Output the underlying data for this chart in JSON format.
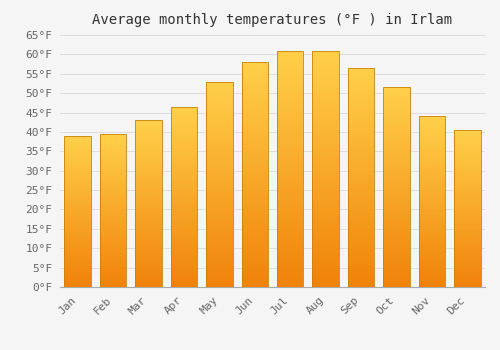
{
  "title": "Average monthly temperatures (°F ) in Irlam",
  "months": [
    "Jan",
    "Feb",
    "Mar",
    "Apr",
    "May",
    "Jun",
    "Jul",
    "Aug",
    "Sep",
    "Oct",
    "Nov",
    "Dec"
  ],
  "values": [
    39,
    39.5,
    43,
    46.5,
    53,
    58,
    61,
    61,
    56.5,
    51.5,
    44,
    40.5
  ],
  "bar_color_top": "#FFD04A",
  "bar_color_bottom": "#F0820A",
  "bar_edge_color": "#C8820A",
  "ylim": [
    0,
    65
  ],
  "yticks": [
    0,
    5,
    10,
    15,
    20,
    25,
    30,
    35,
    40,
    45,
    50,
    55,
    60,
    65
  ],
  "background_color": "#F5F5F5",
  "plot_bg_color": "#F5F5F5",
  "grid_color": "#DDDDDD",
  "title_fontsize": 10,
  "tick_fontsize": 8,
  "font_family": "monospace",
  "title_color": "#333333",
  "tick_color": "#666666"
}
